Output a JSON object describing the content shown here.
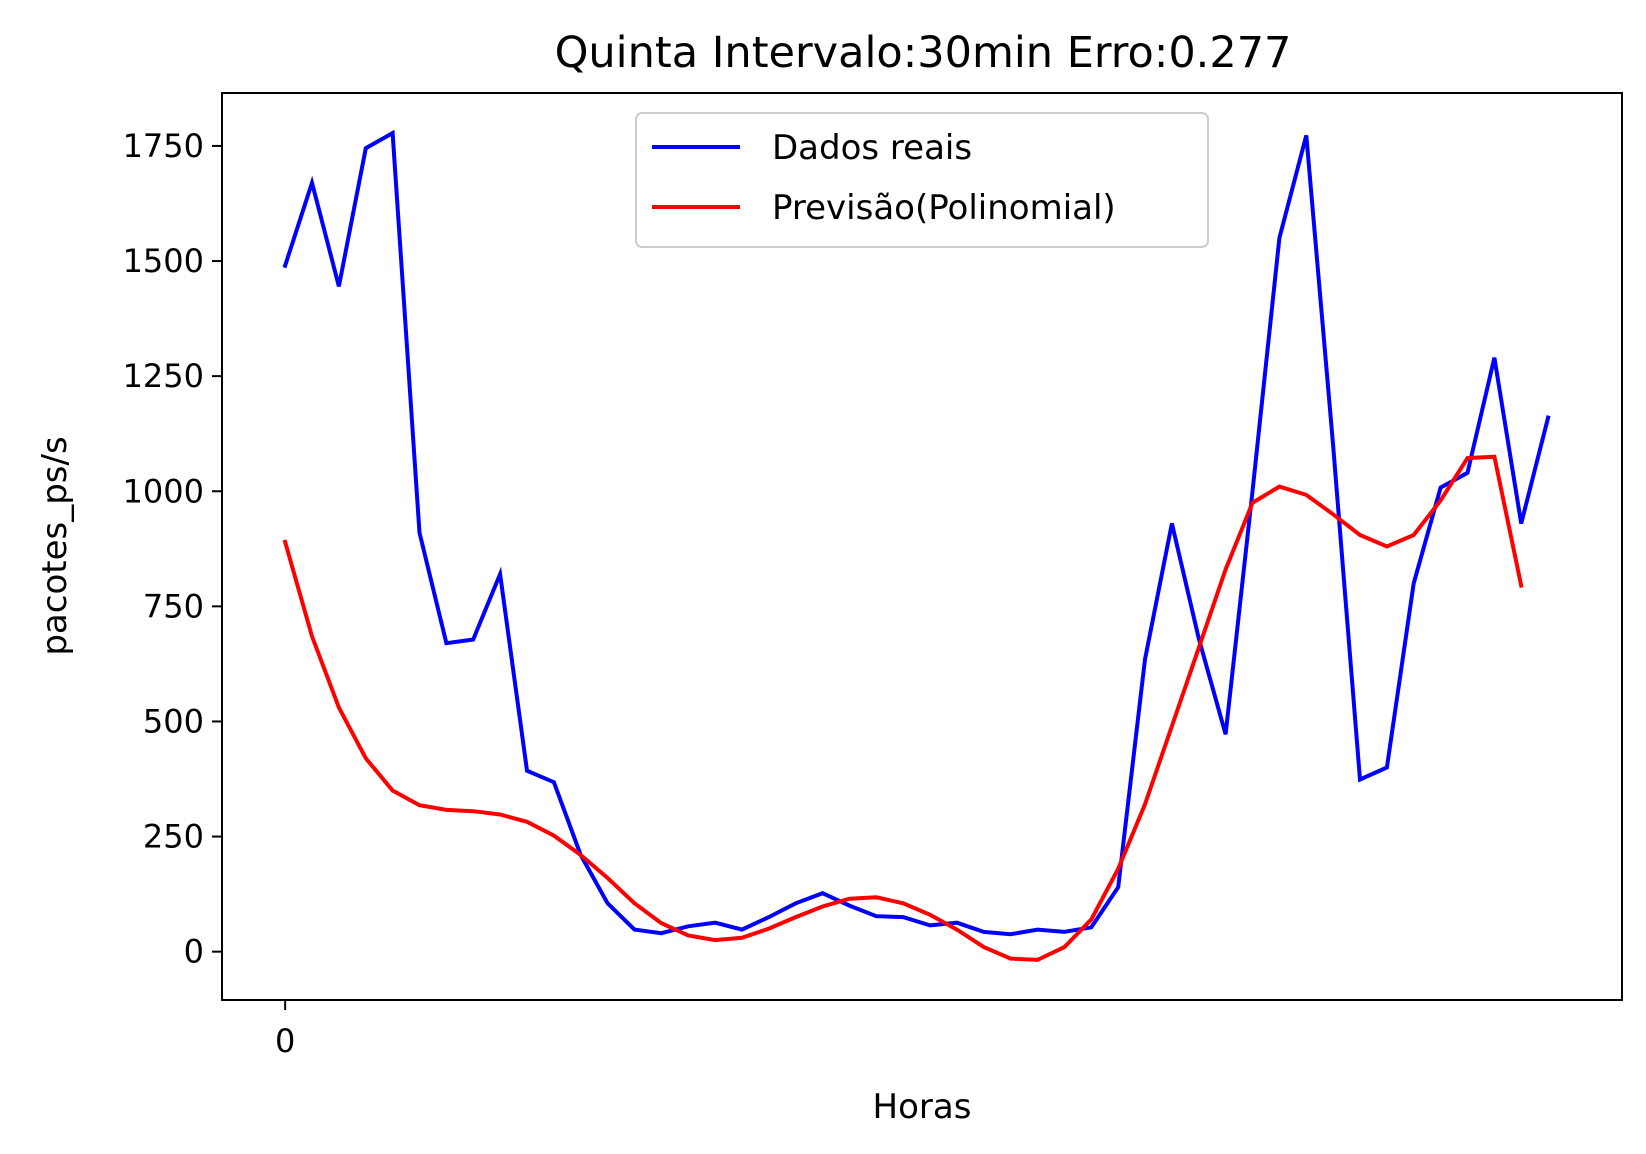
{
  "chart_data": {
    "type": "line",
    "title": "Quinta Intervalo:30min Erro:0.277",
    "xlabel": "Horas",
    "ylabel": "pacotes_ps/s",
    "xlim": [
      -2.35,
      49.75
    ],
    "ylim": [
      -105,
      1865
    ],
    "x_ticks": [
      0
    ],
    "x_tick_labels": [
      "0"
    ],
    "y_ticks": [
      0,
      250,
      500,
      750,
      1000,
      1250,
      1500,
      1750
    ],
    "y_tick_labels": [
      "0",
      "250",
      "500",
      "750",
      "1000",
      "1250",
      "1500",
      "1750"
    ],
    "grid": false,
    "legend": "upper center",
    "series": [
      {
        "name": "Dados reais",
        "color": "#0000ff",
        "values": [
          1490,
          1670,
          1445,
          1745,
          1778,
          910,
          670,
          678,
          820,
          393,
          368,
          210,
          105,
          48,
          40,
          55,
          63,
          48,
          75,
          105,
          127,
          100,
          77,
          75,
          57,
          63,
          43,
          38,
          48,
          43,
          53,
          140,
          635,
          930,
          680,
          472,
          1000,
          1550,
          1773,
          1100,
          374,
          400,
          800,
          1008,
          1040,
          1290,
          930,
          1160
        ]
      },
      {
        "name": "Previsão(Polinomial)",
        "color": "#ff0000",
        "values": [
          890,
          685,
          530,
          420,
          350,
          318,
          308,
          305,
          298,
          282,
          252,
          210,
          160,
          105,
          62,
          35,
          25,
          30,
          50,
          75,
          98,
          115,
          118,
          105,
          80,
          48,
          10,
          -15,
          -18,
          10,
          70,
          180,
          320,
          490,
          660,
          830,
          975,
          1010,
          992,
          950,
          905,
          880,
          905,
          980,
          1072,
          1075,
          795
        ]
      }
    ]
  }
}
